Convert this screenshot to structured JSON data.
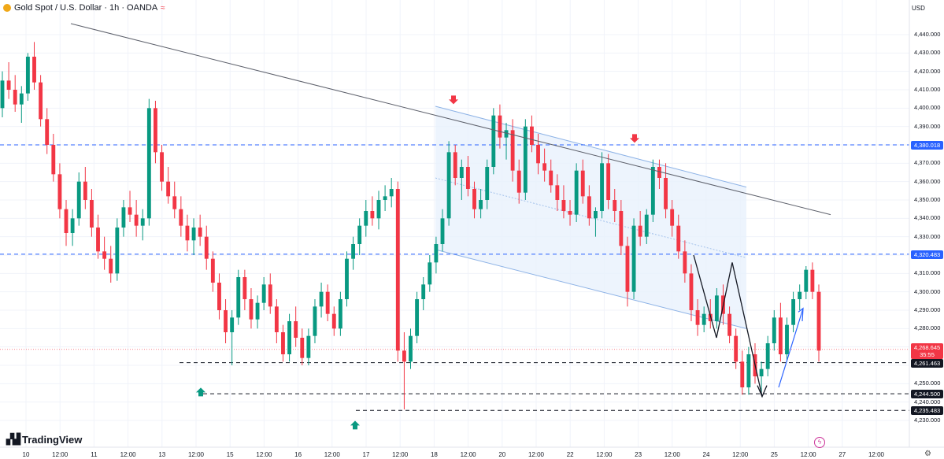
{
  "header": {
    "title": "Gold Spot / U.S. Dollar · 1h · OANDA",
    "currency": "USD"
  },
  "brand": {
    "logo_text": "TradingView"
  },
  "colors": {
    "up": "#089981",
    "down": "#f23645",
    "level_line": "#2962ff",
    "channel_fill": "#e8f1fd",
    "channel_line": "#8eb3e6",
    "support_line": "#131722",
    "trendline": "#5d606b",
    "current_price_bg": "#f23645",
    "level_label_bg": "#2962ff",
    "support_label_bg": "#131722"
  },
  "chart_data": {
    "type": "candlestick",
    "symbol": "Gold Spot / U.S. Dollar",
    "timeframe": "1h",
    "source": "OANDA",
    "ylim": [
      4225,
      4450
    ],
    "y_ticks": [
      4230,
      4240,
      4250,
      4260,
      4270,
      4280,
      4290,
      4300,
      4310,
      4320,
      4330,
      4340,
      4350,
      4360,
      4370,
      4380,
      4390,
      4400,
      4410,
      4420,
      4430,
      4440
    ],
    "y_tick_labels": [
      "4,230.000",
      "4,240.000",
      "4,250.000",
      "4,260.000",
      "4,270.000",
      "4,280.000",
      "4,290.000",
      "4,300.000",
      "4,310.000",
      "4,320.000",
      "4,330.000",
      "4,340.000",
      "4,350.000",
      "4,360.000",
      "4,370.000",
      "4,380.000",
      "4,390.000",
      "4,400.000",
      "4,410.000",
      "4,420.000",
      "4,430.000",
      "4,440.000"
    ],
    "x_ticks": [
      "10",
      "12:00",
      "11",
      "12:00",
      "13",
      "12:00",
      "15",
      "12:00",
      "16",
      "12:00",
      "17",
      "12:00",
      "18",
      "12:00",
      "20",
      "12:00",
      "22",
      "12:00",
      "23",
      "12:00",
      "24",
      "12:00",
      "25",
      "12:00",
      "27",
      "12:00"
    ],
    "horizontal_levels": [
      {
        "price": 4380.018,
        "label": "4,380.018",
        "style": "dashed-blue"
      },
      {
        "price": 4320.483,
        "label": "4,320.483",
        "style": "dashed-blue"
      },
      {
        "price": 4261.463,
        "label": "4,261.463",
        "style": "dashed-black"
      },
      {
        "price": 4244.5,
        "label": "4,244.500",
        "style": "dashed-black"
      },
      {
        "price": 4235.483,
        "label": "4,235.483",
        "style": "dashed-black"
      }
    ],
    "current_price": {
      "price": 4268.645,
      "label": "4,268.645",
      "countdown": "35:55"
    },
    "trendline": {
      "from_price": 4446,
      "to_price": 4342
    },
    "channel": {
      "upper_start": 4401,
      "upper_end": 4357,
      "lower_start": 4323,
      "lower_end": 4280
    },
    "markers": [
      {
        "type": "down-arrow",
        "price": 4403
      },
      {
        "type": "down-arrow",
        "price": 4382
      },
      {
        "type": "up-arrow",
        "price": 4247
      },
      {
        "type": "up-arrow",
        "price": 4229
      }
    ],
    "candles": [
      [
        4400,
        4420,
        4395,
        4415
      ],
      [
        4415,
        4425,
        4405,
        4410
      ],
      [
        4410,
        4418,
        4398,
        4402
      ],
      [
        4402,
        4412,
        4392,
        4408
      ],
      [
        4408,
        4430,
        4404,
        4428
      ],
      [
        4428,
        4436,
        4410,
        4414
      ],
      [
        4414,
        4418,
        4390,
        4394
      ],
      [
        4394,
        4400,
        4375,
        4380
      ],
      [
        4380,
        4386,
        4360,
        4364
      ],
      [
        4364,
        4370,
        4340,
        4345
      ],
      [
        4345,
        4350,
        4325,
        4332
      ],
      [
        4332,
        4345,
        4325,
        4340
      ],
      [
        4340,
        4365,
        4336,
        4360
      ],
      [
        4360,
        4368,
        4345,
        4350
      ],
      [
        4350,
        4356,
        4330,
        4335
      ],
      [
        4335,
        4342,
        4318,
        4322
      ],
      [
        4322,
        4330,
        4312,
        4318
      ],
      [
        4318,
        4325,
        4305,
        4310
      ],
      [
        4310,
        4340,
        4306,
        4335
      ],
      [
        4335,
        4350,
        4330,
        4346
      ],
      [
        4346,
        4355,
        4338,
        4342
      ],
      [
        4342,
        4350,
        4330,
        4336
      ],
      [
        4336,
        4345,
        4328,
        4340
      ],
      [
        4340,
        4405,
        4336,
        4400
      ],
      [
        4400,
        4404,
        4370,
        4376
      ],
      [
        4376,
        4380,
        4355,
        4360
      ],
      [
        4360,
        4368,
        4348,
        4352
      ],
      [
        4352,
        4360,
        4340,
        4345
      ],
      [
        4345,
        4352,
        4330,
        4336
      ],
      [
        4336,
        4342,
        4322,
        4328
      ],
      [
        4328,
        4340,
        4320,
        4335
      ],
      [
        4335,
        4342,
        4325,
        4330
      ],
      [
        4330,
        4336,
        4312,
        4318
      ],
      [
        4318,
        4322,
        4300,
        4305
      ],
      [
        4305,
        4310,
        4285,
        4290
      ],
      [
        4290,
        4296,
        4272,
        4278
      ],
      [
        4278,
        4290,
        4260,
        4286
      ],
      [
        4286,
        4312,
        4282,
        4308
      ],
      [
        4308,
        4312,
        4290,
        4296
      ],
      [
        4296,
        4302,
        4280,
        4285
      ],
      [
        4285,
        4298,
        4280,
        4294
      ],
      [
        4294,
        4308,
        4290,
        4304
      ],
      [
        4304,
        4310,
        4288,
        4292
      ],
      [
        4292,
        4296,
        4272,
        4278
      ],
      [
        4278,
        4282,
        4262,
        4266
      ],
      [
        4266,
        4288,
        4262,
        4284
      ],
      [
        4284,
        4292,
        4270,
        4275
      ],
      [
        4275,
        4280,
        4260,
        4264
      ],
      [
        4264,
        4280,
        4260,
        4276
      ],
      [
        4276,
        4296,
        4272,
        4292
      ],
      [
        4292,
        4305,
        4286,
        4300
      ],
      [
        4300,
        4304,
        4284,
        4288
      ],
      [
        4288,
        4292,
        4276,
        4280
      ],
      [
        4280,
        4300,
        4276,
        4296
      ],
      [
        4296,
        4322,
        4292,
        4318
      ],
      [
        4318,
        4330,
        4312,
        4326
      ],
      [
        4326,
        4340,
        4320,
        4336
      ],
      [
        4336,
        4350,
        4330,
        4344
      ],
      [
        4344,
        4352,
        4336,
        4340
      ],
      [
        4340,
        4355,
        4334,
        4350
      ],
      [
        4350,
        4358,
        4344,
        4352
      ],
      [
        4352,
        4362,
        4346,
        4356
      ],
      [
        4356,
        4360,
        4262,
        4268
      ],
      [
        4268,
        4278,
        4236,
        4262
      ],
      [
        4262,
        4280,
        4258,
        4276
      ],
      [
        4276,
        4300,
        4272,
        4296
      ],
      [
        4296,
        4308,
        4290,
        4304
      ],
      [
        4304,
        4320,
        4300,
        4316
      ],
      [
        4316,
        4330,
        4310,
        4326
      ],
      [
        4326,
        4345,
        4322,
        4340
      ],
      [
        4340,
        4382,
        4336,
        4376
      ],
      [
        4376,
        4380,
        4358,
        4362
      ],
      [
        4362,
        4372,
        4350,
        4368
      ],
      [
        4368,
        4374,
        4352,
        4356
      ],
      [
        4356,
        4360,
        4340,
        4345
      ],
      [
        4345,
        4356,
        4340,
        4350
      ],
      [
        4350,
        4372,
        4345,
        4368
      ],
      [
        4368,
        4400,
        4364,
        4396
      ],
      [
        4396,
        4402,
        4378,
        4384
      ],
      [
        4384,
        4392,
        4372,
        4388
      ],
      [
        4388,
        4394,
        4360,
        4366
      ],
      [
        4366,
        4372,
        4348,
        4354
      ],
      [
        4354,
        4394,
        4350,
        4390
      ],
      [
        4390,
        4396,
        4376,
        4380
      ],
      [
        4380,
        4386,
        4364,
        4370
      ],
      [
        4370,
        4378,
        4360,
        4366
      ],
      [
        4366,
        4372,
        4354,
        4358
      ],
      [
        4358,
        4364,
        4344,
        4350
      ],
      [
        4350,
        4358,
        4340,
        4344
      ],
      [
        4344,
        4350,
        4336,
        4342
      ],
      [
        4342,
        4370,
        4338,
        4366
      ],
      [
        4366,
        4372,
        4348,
        4352
      ],
      [
        4352,
        4358,
        4336,
        4340
      ],
      [
        4340,
        4346,
        4330,
        4344
      ],
      [
        4344,
        4376,
        4340,
        4370
      ],
      [
        4370,
        4375,
        4345,
        4350
      ],
      [
        4350,
        4356,
        4338,
        4344
      ],
      [
        4344,
        4350,
        4320,
        4325
      ],
      [
        4325,
        4330,
        4292,
        4300
      ],
      [
        4300,
        4340,
        4296,
        4336
      ],
      [
        4336,
        4344,
        4325,
        4330
      ],
      [
        4330,
        4345,
        4326,
        4342
      ],
      [
        4342,
        4372,
        4338,
        4368
      ],
      [
        4368,
        4372,
        4356,
        4362
      ],
      [
        4362,
        4370,
        4340,
        4345
      ],
      [
        4345,
        4350,
        4330,
        4336
      ],
      [
        4336,
        4342,
        4318,
        4322
      ],
      [
        4322,
        4328,
        4305,
        4310
      ],
      [
        4310,
        4315,
        4284,
        4290
      ],
      [
        4290,
        4296,
        4276,
        4282
      ],
      [
        4282,
        4292,
        4278,
        4288
      ],
      [
        4288,
        4296,
        4280,
        4284
      ],
      [
        4284,
        4302,
        4280,
        4298
      ],
      [
        4298,
        4304,
        4282,
        4288
      ],
      [
        4288,
        4292,
        4272,
        4276
      ],
      [
        4276,
        4280,
        4258,
        4262
      ],
      [
        4262,
        4268,
        4244,
        4248
      ],
      [
        4248,
        4270,
        4244,
        4266
      ],
      [
        4266,
        4272,
        4250,
        4254
      ],
      [
        4254,
        4262,
        4244,
        4258
      ],
      [
        4258,
        4276,
        4254,
        4272
      ],
      [
        4272,
        4290,
        4268,
        4286
      ],
      [
        4286,
        4294,
        4262,
        4266
      ],
      [
        4266,
        4286,
        4262,
        4282
      ],
      [
        4282,
        4300,
        4278,
        4296
      ],
      [
        4296,
        4304,
        4290,
        4300
      ],
      [
        4300,
        4314,
        4296,
        4312
      ],
      [
        4312,
        4316,
        4296,
        4300
      ],
      [
        4300,
        4304,
        4262,
        4268
      ]
    ]
  }
}
